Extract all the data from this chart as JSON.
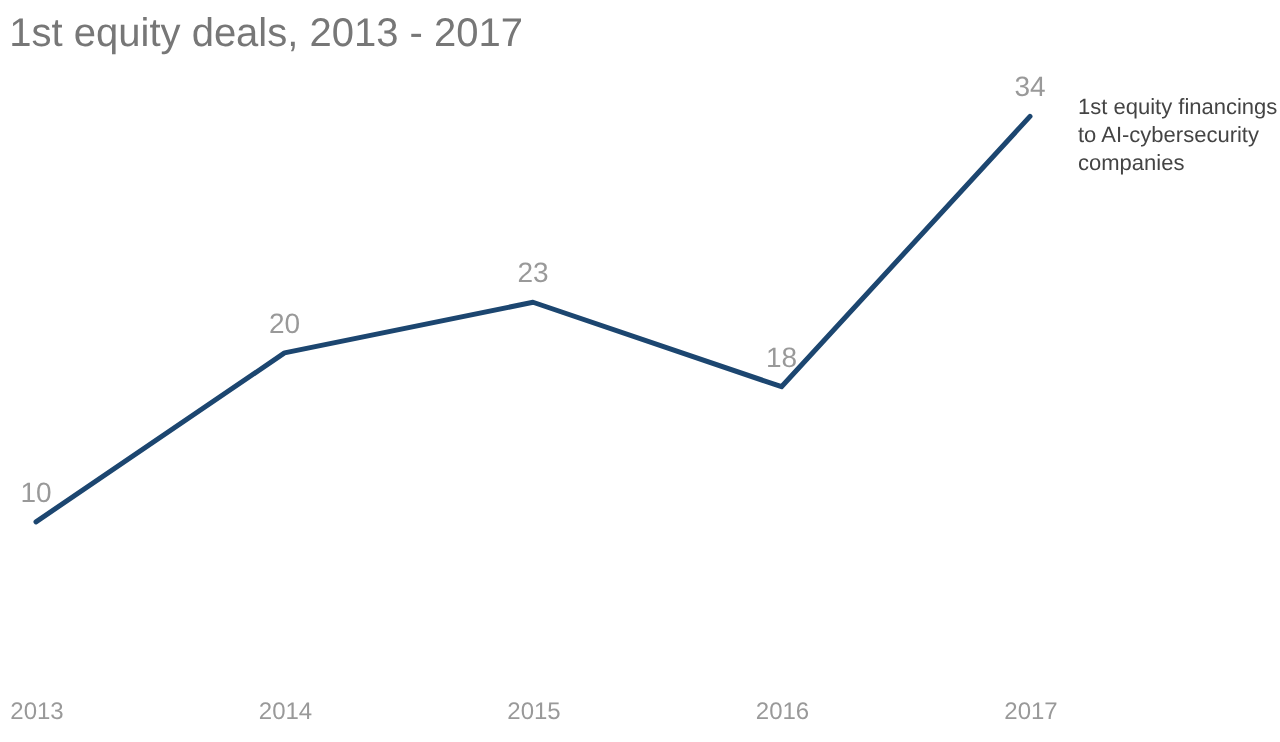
{
  "chart_data": {
    "type": "line",
    "title": "1st equity deals, 2013 - 2017",
    "categories": [
      "2013",
      "2014",
      "2015",
      "2016",
      "2017"
    ],
    "series": [
      {
        "name": "1st equity financings to AI-cybersecurity companies",
        "color": "#1c4670",
        "values": [
          10,
          20,
          23,
          18,
          34
        ]
      }
    ],
    "data_labels": true,
    "grid": false,
    "marker": "none",
    "line_style": "solid"
  }
}
